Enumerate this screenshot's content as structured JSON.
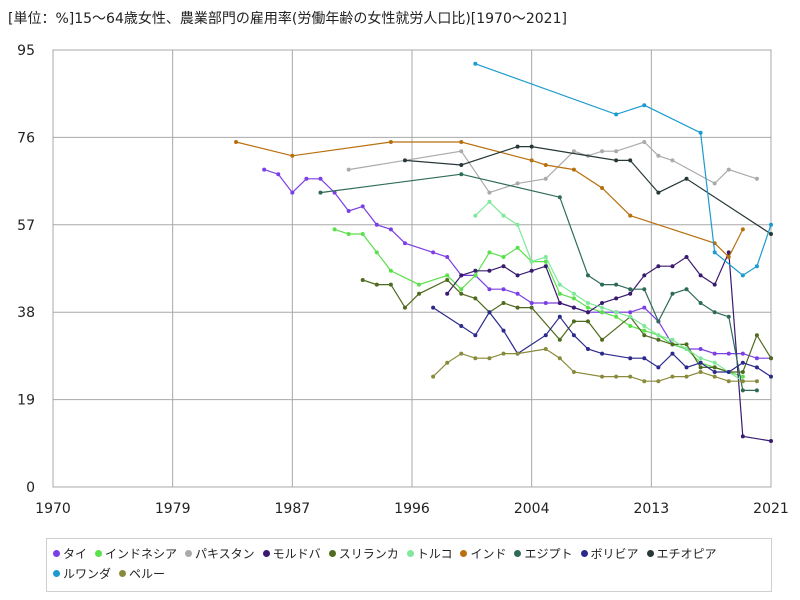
{
  "chart_data": {
    "type": "line",
    "title": "[単位：%]15～64歳女性、農業部門の雇用率(労働年齢の女性就労人口比)[1970～2021]",
    "xlabel": "",
    "ylabel": "",
    "xlim": [
      1970,
      2021
    ],
    "ylim": [
      0,
      95
    ],
    "x_ticks": [
      "1970",
      "1979",
      "1987",
      "1996",
      "2004",
      "2013",
      "2021"
    ],
    "x_tick_values": [
      1970,
      1978.5,
      1987,
      1995.5,
      2004,
      2012.5,
      2021
    ],
    "y_ticks": [
      "0",
      "19",
      "38",
      "57",
      "76",
      "95"
    ],
    "y_tick_values": [
      0,
      19,
      38,
      57,
      76,
      95
    ],
    "grid": true,
    "legend_position": "bottom",
    "series": [
      {
        "name": "タイ",
        "color": "#7b3fe4",
        "points": [
          [
            1985,
            69
          ],
          [
            1986,
            68
          ],
          [
            1987,
            64
          ],
          [
            1988,
            67
          ],
          [
            1989,
            67
          ],
          [
            1990,
            64
          ],
          [
            1991,
            60
          ],
          [
            1992,
            61
          ],
          [
            1993,
            57
          ],
          [
            1994,
            56
          ],
          [
            1995,
            53
          ],
          [
            1997,
            51
          ],
          [
            1998,
            50
          ],
          [
            1999,
            46
          ],
          [
            2000,
            46
          ],
          [
            2001,
            43
          ],
          [
            2002,
            43
          ],
          [
            2003,
            42
          ],
          [
            2004,
            40
          ],
          [
            2005,
            40
          ],
          [
            2006,
            40
          ],
          [
            2007,
            39
          ],
          [
            2008,
            38
          ],
          [
            2009,
            38
          ],
          [
            2010,
            38
          ],
          [
            2011,
            38
          ],
          [
            2012,
            39
          ],
          [
            2013,
            36
          ],
          [
            2014,
            31
          ],
          [
            2015,
            30
          ],
          [
            2016,
            30
          ],
          [
            2017,
            29
          ],
          [
            2018,
            29
          ],
          [
            2019,
            29
          ],
          [
            2020,
            28
          ],
          [
            2021,
            28
          ]
        ]
      },
      {
        "name": "インドネシア",
        "color": "#5be04b",
        "points": [
          [
            1990,
            56
          ],
          [
            1991,
            55
          ],
          [
            1992,
            55
          ],
          [
            1993,
            51
          ],
          [
            1994,
            47
          ],
          [
            1996,
            44
          ],
          [
            1998,
            46
          ],
          [
            1999,
            43
          ],
          [
            2000,
            46
          ],
          [
            2001,
            51
          ],
          [
            2002,
            50
          ],
          [
            2003,
            52
          ],
          [
            2004,
            49
          ],
          [
            2005,
            49
          ],
          [
            2006,
            42
          ],
          [
            2007,
            41
          ],
          [
            2008,
            39
          ],
          [
            2009,
            38
          ],
          [
            2010,
            37
          ],
          [
            2011,
            35
          ],
          [
            2012,
            34
          ],
          [
            2013,
            33
          ],
          [
            2014,
            31
          ],
          [
            2015,
            30
          ],
          [
            2016,
            27
          ],
          [
            2017,
            26
          ],
          [
            2018,
            25
          ],
          [
            2019,
            24
          ]
        ]
      },
      {
        "name": "パキスタン",
        "color": "#aaaaaa",
        "points": [
          [
            1991,
            69
          ],
          [
            1999,
            73
          ],
          [
            2001,
            64
          ],
          [
            2003,
            66
          ],
          [
            2005,
            67
          ],
          [
            2007,
            73
          ],
          [
            2008,
            72
          ],
          [
            2009,
            73
          ],
          [
            2010,
            73
          ],
          [
            2012,
            75
          ],
          [
            2013,
            72
          ],
          [
            2014,
            71
          ],
          [
            2017,
            66
          ],
          [
            2018,
            69
          ],
          [
            2020,
            67
          ]
        ]
      },
      {
        "name": "モルドバ",
        "color": "#3a1a6e",
        "points": [
          [
            1998,
            42
          ],
          [
            1999,
            46
          ],
          [
            2000,
            47
          ],
          [
            2001,
            47
          ],
          [
            2002,
            48
          ],
          [
            2003,
            46
          ],
          [
            2004,
            47
          ],
          [
            2005,
            48
          ],
          [
            2006,
            40
          ],
          [
            2007,
            39
          ],
          [
            2008,
            38
          ],
          [
            2009,
            40
          ],
          [
            2010,
            41
          ],
          [
            2011,
            42
          ],
          [
            2012,
            46
          ],
          [
            2013,
            48
          ],
          [
            2014,
            48
          ],
          [
            2015,
            50
          ],
          [
            2016,
            46
          ],
          [
            2017,
            44
          ],
          [
            2018,
            51
          ],
          [
            2019,
            11
          ],
          [
            2021,
            10
          ]
        ]
      },
      {
        "name": "スリランカ",
        "color": "#4f6b1f",
        "points": [
          [
            1992,
            45
          ],
          [
            1993,
            44
          ],
          [
            1994,
            44
          ],
          [
            1995,
            39
          ],
          [
            1996,
            42
          ],
          [
            1998,
            45
          ],
          [
            1999,
            42
          ],
          [
            2000,
            41
          ],
          [
            2001,
            38
          ],
          [
            2002,
            40
          ],
          [
            2003,
            39
          ],
          [
            2004,
            39
          ],
          [
            2006,
            32
          ],
          [
            2007,
            36
          ],
          [
            2008,
            36
          ],
          [
            2009,
            32
          ],
          [
            2011,
            37
          ],
          [
            2012,
            33
          ],
          [
            2013,
            32
          ],
          [
            2014,
            31
          ],
          [
            2015,
            31
          ],
          [
            2016,
            26
          ],
          [
            2017,
            26
          ],
          [
            2018,
            25
          ],
          [
            2019,
            25
          ],
          [
            2020,
            33
          ],
          [
            2021,
            28
          ]
        ]
      },
      {
        "name": "トルコ",
        "color": "#7fe89a",
        "points": [
          [
            2000,
            59
          ],
          [
            2001,
            62
          ],
          [
            2002,
            59
          ],
          [
            2003,
            57
          ],
          [
            2004,
            49
          ],
          [
            2005,
            50
          ],
          [
            2006,
            44
          ],
          [
            2007,
            42
          ],
          [
            2008,
            40
          ],
          [
            2009,
            39
          ],
          [
            2010,
            38
          ],
          [
            2011,
            37
          ],
          [
            2012,
            35
          ],
          [
            2013,
            33
          ],
          [
            2014,
            32
          ],
          [
            2015,
            30
          ],
          [
            2016,
            28
          ],
          [
            2017,
            27
          ],
          [
            2018,
            25
          ],
          [
            2019,
            23
          ]
        ]
      },
      {
        "name": "インド",
        "color": "#b8700f",
        "points": [
          [
            1983,
            75
          ],
          [
            1987,
            72
          ],
          [
            1994,
            75
          ],
          [
            1999,
            75
          ],
          [
            2004,
            71
          ],
          [
            2005,
            70
          ],
          [
            2007,
            69
          ],
          [
            2009,
            65
          ],
          [
            2011,
            59
          ],
          [
            2017,
            53
          ],
          [
            2018,
            50
          ],
          [
            2019,
            56
          ]
        ]
      },
      {
        "name": "エジプト",
        "color": "#2e6b57",
        "points": [
          [
            1989,
            64
          ],
          [
            1999,
            68
          ],
          [
            2006,
            63
          ],
          [
            2008,
            46
          ],
          [
            2009,
            44
          ],
          [
            2010,
            44
          ],
          [
            2011,
            43
          ],
          [
            2012,
            43
          ],
          [
            2013,
            36
          ],
          [
            2014,
            42
          ],
          [
            2015,
            43
          ],
          [
            2016,
            40
          ],
          [
            2017,
            38
          ],
          [
            2018,
            37
          ],
          [
            2019,
            21
          ],
          [
            2020,
            21
          ]
        ]
      },
      {
        "name": "ボリビア",
        "color": "#2b2a8c",
        "points": [
          [
            1997,
            39
          ],
          [
            1999,
            35
          ],
          [
            2000,
            33
          ],
          [
            2001,
            38
          ],
          [
            2002,
            34
          ],
          [
            2003,
            29
          ],
          [
            2005,
            33
          ],
          [
            2006,
            37
          ],
          [
            2007,
            33
          ],
          [
            2008,
            30
          ],
          [
            2009,
            29
          ],
          [
            2011,
            28
          ],
          [
            2012,
            28
          ],
          [
            2013,
            26
          ],
          [
            2014,
            29
          ],
          [
            2015,
            26
          ],
          [
            2016,
            27
          ],
          [
            2017,
            25
          ],
          [
            2018,
            25
          ],
          [
            2019,
            27
          ],
          [
            2020,
            26
          ],
          [
            2021,
            24
          ]
        ]
      },
      {
        "name": "エチオピア",
        "color": "#283838",
        "points": [
          [
            1995,
            71
          ],
          [
            1999,
            70
          ],
          [
            2003,
            74
          ],
          [
            2004,
            74
          ],
          [
            2010,
            71
          ],
          [
            2011,
            71
          ],
          [
            2013,
            64
          ],
          [
            2015,
            67
          ],
          [
            2021,
            55
          ]
        ]
      },
      {
        "name": "ルワンダ",
        "color": "#1b9bd0",
        "points": [
          [
            2000,
            92
          ],
          [
            2010,
            81
          ],
          [
            2012,
            83
          ],
          [
            2016,
            77
          ],
          [
            2017,
            51
          ],
          [
            2019,
            46
          ],
          [
            2020,
            48
          ],
          [
            2021,
            57
          ]
        ]
      },
      {
        "name": "ペルー",
        "color": "#8a8a3c",
        "points": [
          [
            1997,
            24
          ],
          [
            1998,
            27
          ],
          [
            1999,
            29
          ],
          [
            2000,
            28
          ],
          [
            2001,
            28
          ],
          [
            2002,
            29
          ],
          [
            2003,
            29
          ],
          [
            2005,
            30
          ],
          [
            2006,
            28
          ],
          [
            2007,
            25
          ],
          [
            2009,
            24
          ],
          [
            2010,
            24
          ],
          [
            2011,
            24
          ],
          [
            2012,
            23
          ],
          [
            2013,
            23
          ],
          [
            2014,
            24
          ],
          [
            2015,
            24
          ],
          [
            2016,
            25
          ],
          [
            2017,
            24
          ],
          [
            2018,
            23
          ],
          [
            2019,
            23
          ],
          [
            2020,
            23
          ]
        ]
      }
    ]
  }
}
